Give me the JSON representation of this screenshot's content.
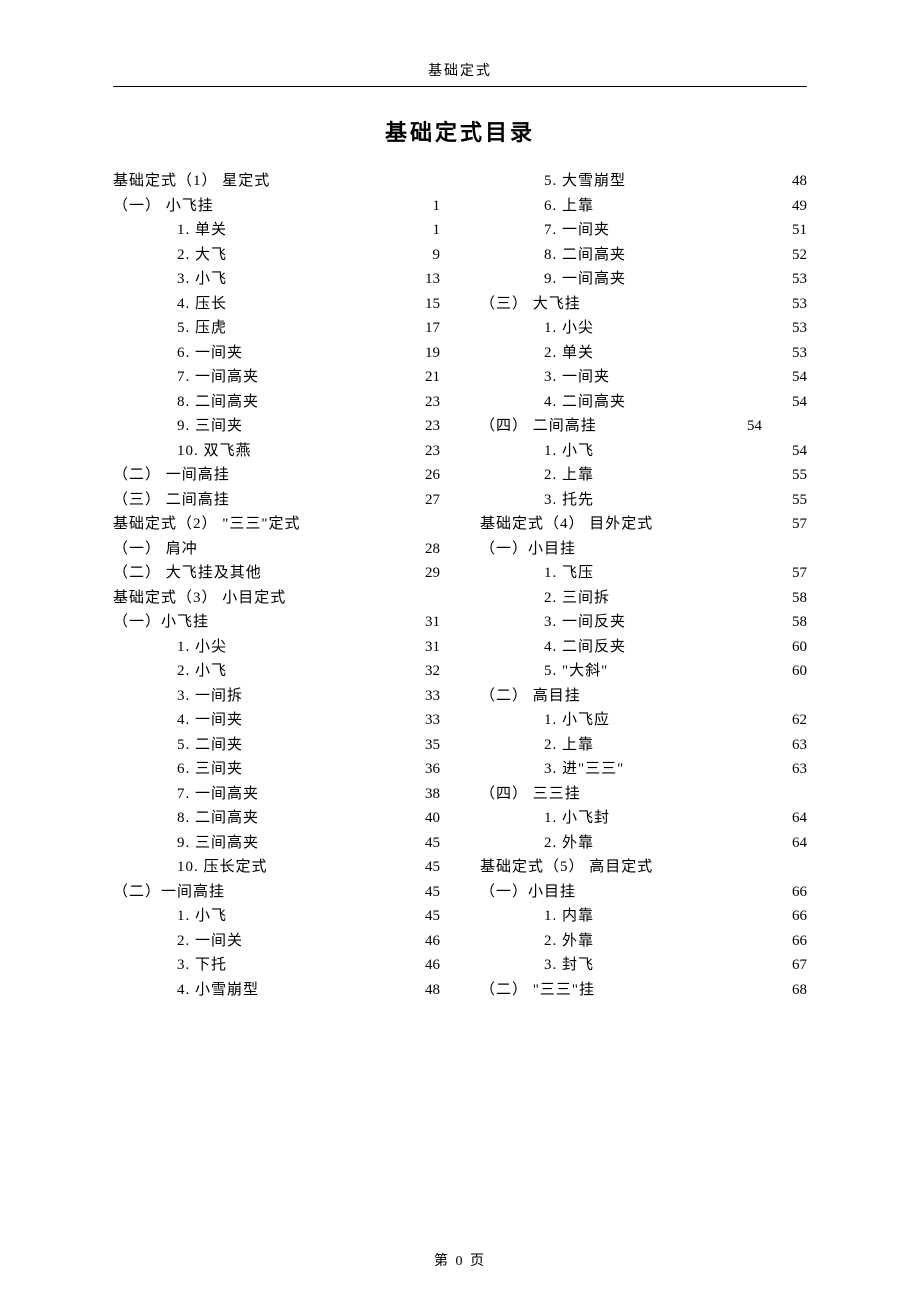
{
  "header": "基础定式",
  "title": "基础定式目录",
  "footer": "第 0 页",
  "left": [
    {
      "indent": 1,
      "label": "基础定式（1） 星定式",
      "page": ""
    },
    {
      "indent": 1,
      "label": "（一） 小飞挂",
      "page": "1"
    },
    {
      "indent": 2,
      "label": "1.  单关",
      "page": "1"
    },
    {
      "indent": 2,
      "label": "2.  大飞",
      "page": "9"
    },
    {
      "indent": 2,
      "label": "3.  小飞",
      "page": "13"
    },
    {
      "indent": 2,
      "label": "4.  压长",
      "page": "15"
    },
    {
      "indent": 2,
      "label": "5.  压虎",
      "page": "17"
    },
    {
      "indent": 2,
      "label": "6.  一间夹",
      "page": "19"
    },
    {
      "indent": 2,
      "label": "7.  一间高夹",
      "page": "21"
    },
    {
      "indent": 2,
      "label": "8.  二间高夹",
      "page": "23"
    },
    {
      "indent": 2,
      "label": "9.  三间夹",
      "page": "23"
    },
    {
      "indent": 2,
      "label": "10. 双飞燕",
      "page": "23"
    },
    {
      "indent": 1,
      "label": "（二） 一间高挂",
      "page": "26"
    },
    {
      "indent": 1,
      "label": "（三） 二间高挂",
      "page": "27"
    },
    {
      "indent": 1,
      "label": "基础定式（2） \"三三\"定式",
      "page": ""
    },
    {
      "indent": 1,
      "label": "（一） 肩冲",
      "page": "28"
    },
    {
      "indent": 1,
      "label": "（二） 大飞挂及其他",
      "page": "29"
    },
    {
      "indent": 1,
      "label": "基础定式（3） 小目定式",
      "page": ""
    },
    {
      "indent": 1,
      "label": "（一）小飞挂",
      "page": "31"
    },
    {
      "indent": 2,
      "label": "1.  小尖",
      "page": "31"
    },
    {
      "indent": 2,
      "label": "2.  小飞",
      "page": "32"
    },
    {
      "indent": 2,
      "label": "3.  一间拆",
      "page": "33"
    },
    {
      "indent": 2,
      "label": "4.  一间夹",
      "page": "33"
    },
    {
      "indent": 2,
      "label": "5.  二间夹",
      "page": "35"
    },
    {
      "indent": 2,
      "label": "6.  三间夹",
      "page": "36"
    },
    {
      "indent": 2,
      "label": "7.  一间高夹",
      "page": "38"
    },
    {
      "indent": 2,
      "label": "8.  二间高夹",
      "page": "40"
    },
    {
      "indent": 2,
      "label": "9.  三间高夹",
      "page": "45"
    },
    {
      "indent": 2,
      "label": "10. 压长定式",
      "page": "45"
    },
    {
      "indent": 1,
      "label": "（二）一间高挂",
      "page": "45"
    },
    {
      "indent": 2,
      "label": "1.  小飞",
      "page": "45"
    },
    {
      "indent": 2,
      "label": "2.  一间关",
      "page": "46"
    },
    {
      "indent": 2,
      "label": "3.  下托",
      "page": "46"
    },
    {
      "indent": 2,
      "label": "4.  小雪崩型",
      "page": "48"
    }
  ],
  "right": [
    {
      "indent": 2,
      "label": "5.  大雪崩型",
      "page": "48"
    },
    {
      "indent": 2,
      "label": "6.  上靠",
      "page": "49"
    },
    {
      "indent": 2,
      "label": "7.  一间夹",
      "page": "51"
    },
    {
      "indent": 2,
      "label": "8.  二间高夹",
      "page": "52"
    },
    {
      "indent": 2,
      "label": "9.  一间高夹",
      "page": "53"
    },
    {
      "indent": 1,
      "label": "（三） 大飞挂",
      "page": "53"
    },
    {
      "indent": 2,
      "label": "1.  小尖",
      "page": "53"
    },
    {
      "indent": 2,
      "label": "2.  单关",
      "page": "53"
    },
    {
      "indent": 2,
      "label": "3.  一间夹",
      "page": "54"
    },
    {
      "indent": 2,
      "label": "4.  二间高夹",
      "page": "54"
    },
    {
      "indent": 1,
      "label": "（四）  二间高挂",
      "page": "54",
      "special": true
    },
    {
      "indent": 2,
      "label": "1.  小飞",
      "page": "54"
    },
    {
      "indent": 2,
      "label": "2.  上靠",
      "page": "55"
    },
    {
      "indent": 2,
      "label": "3.  托先",
      "page": "55"
    },
    {
      "indent": 1,
      "label": "基础定式（4） 目外定式",
      "page": "57"
    },
    {
      "indent": 1,
      "label": "（一）小目挂",
      "page": ""
    },
    {
      "indent": 2,
      "label": "1.  飞压",
      "page": "57"
    },
    {
      "indent": 2,
      "label": "2.  三间拆",
      "page": "58"
    },
    {
      "indent": 2,
      "label": "3.  一间反夹",
      "page": "58"
    },
    {
      "indent": 2,
      "label": "4.  二间反夹",
      "page": "60"
    },
    {
      "indent": 2,
      "label": "5.  \"大斜\"",
      "page": "60"
    },
    {
      "indent": 1,
      "label": "（二） 高目挂",
      "page": ""
    },
    {
      "indent": 2,
      "label": "1.  小飞应",
      "page": "62"
    },
    {
      "indent": 2,
      "label": "2.  上靠",
      "page": "63"
    },
    {
      "indent": 2,
      "label": "3.  进\"三三\"",
      "page": "63"
    },
    {
      "indent": 1,
      "label": "（四） 三三挂",
      "page": ""
    },
    {
      "indent": 2,
      "label": "1. 小飞封",
      "page": "64"
    },
    {
      "indent": 2,
      "label": "2. 外靠",
      "page": "64"
    },
    {
      "indent": 1,
      "label": "基础定式（5） 高目定式",
      "page": ""
    },
    {
      "indent": 1,
      "label": "（一）小目挂",
      "page": "66"
    },
    {
      "indent": 2,
      "label": "1.  内靠",
      "page": "66"
    },
    {
      "indent": 2,
      "label": "2.  外靠",
      "page": "66"
    },
    {
      "indent": 2,
      "label": "3.  封飞",
      "page": "67"
    },
    {
      "indent": 1,
      "label": "（二） \"三三\"挂",
      "page": "68"
    }
  ]
}
